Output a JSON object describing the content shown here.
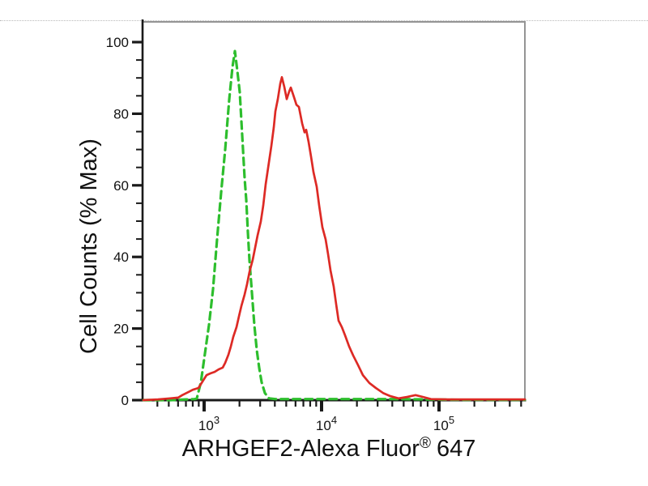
{
  "page": {
    "background": "#ffffff"
  },
  "labels": {
    "x_title_main": "ARHGEF2-Alexa Fluor",
    "x_title_sup": "®",
    "x_title_suffix": "647",
    "y_title": "Cell Counts (% Max)"
  },
  "chart_data": {
    "type": "line",
    "subtype": "flow-cytometry-histogram",
    "title": "",
    "xlabel": "ARHGEF2-Alexa Fluor® 647",
    "ylabel": "Cell Counts (% Max)",
    "x_scale": "log10",
    "x_range": [
      300,
      538000
    ],
    "y_range": [
      0,
      106
    ],
    "grid": false,
    "legend": "none",
    "axis_color": "#1a1a1a",
    "frame_color": "#949494",
    "x_major_ticks": [
      {
        "value": 1000,
        "base": "10",
        "exp": "3"
      },
      {
        "value": 10000,
        "base": "10",
        "exp": "4"
      },
      {
        "value": 100000,
        "base": "10",
        "exp": "5"
      }
    ],
    "x_minor_multiples": [
      2,
      3,
      4,
      5,
      6,
      7,
      8,
      9
    ],
    "y_major_ticks": [
      0,
      20,
      40,
      60,
      80,
      100
    ],
    "y_minor_step": 5,
    "series": [
      {
        "name": "green-dashed-control",
        "color": "#2dbe2d",
        "line_style": "dashed",
        "dash": [
          9,
          6
        ],
        "width": 3.2,
        "peak": {
          "x": 1830,
          "y": 97.5
        },
        "points": [
          [
            300,
            0
          ],
          [
            520,
            0
          ],
          [
            700,
            0.2
          ],
          [
            830,
            0.3
          ],
          [
            867,
            0.5
          ],
          [
            938,
            5
          ],
          [
            1016,
            13
          ],
          [
            1100,
            21
          ],
          [
            1191,
            31
          ],
          [
            1289,
            45
          ],
          [
            1396,
            58
          ],
          [
            1511,
            70
          ],
          [
            1636,
            84
          ],
          [
            1744,
            93
          ],
          [
            1829,
            97.5
          ],
          [
            1918,
            92
          ],
          [
            2012,
            86
          ],
          [
            2076,
            78
          ],
          [
            2143,
            70
          ],
          [
            2212,
            62
          ],
          [
            2283,
            56
          ],
          [
            2357,
            47
          ],
          [
            2433,
            39
          ],
          [
            2512,
            33
          ],
          [
            2593,
            27
          ],
          [
            2677,
            21
          ],
          [
            2808,
            14
          ],
          [
            2944,
            9
          ],
          [
            3088,
            5
          ],
          [
            3290,
            2
          ],
          [
            3563,
            0.5
          ],
          [
            4045,
            0.3
          ],
          [
            6000,
            0.3
          ],
          [
            10000,
            0.3
          ],
          [
            20000,
            0.3
          ],
          [
            40000,
            0.3
          ],
          [
            80000,
            0.2
          ],
          [
            150000,
            0.1
          ],
          [
            538000,
            0.1
          ]
        ]
      },
      {
        "name": "red-solid-stained",
        "color": "#dd2a25",
        "line_style": "solid",
        "dash": null,
        "width": 2.7,
        "peak": {
          "x": 4600,
          "y": 90.2
        },
        "points": [
          [
            300,
            0
          ],
          [
            404,
            0.2
          ],
          [
            513,
            0.5
          ],
          [
            602,
            0.7
          ],
          [
            651,
            1.4
          ],
          [
            740,
            2.3
          ],
          [
            801,
            2.9
          ],
          [
            895,
            3.4
          ],
          [
            1000,
            5.9
          ],
          [
            1049,
            7
          ],
          [
            1135,
            7.5
          ],
          [
            1230,
            7.9
          ],
          [
            1331,
            8.6
          ],
          [
            1441,
            9.1
          ],
          [
            1511,
            10.4
          ],
          [
            1611,
            12.7
          ],
          [
            1689,
            15
          ],
          [
            1772,
            17.7
          ],
          [
            1887,
            20.4
          ],
          [
            1980,
            23.4
          ],
          [
            2076,
            26.3
          ],
          [
            2212,
            29.5
          ],
          [
            2321,
            32.4
          ],
          [
            2433,
            35.8
          ],
          [
            2593,
            39.2
          ],
          [
            2719,
            42.6
          ],
          [
            2853,
            46
          ],
          [
            3040,
            49.9
          ],
          [
            3188,
            54.4
          ],
          [
            3343,
            60.3
          ],
          [
            3563,
            66.4
          ],
          [
            3736,
            71
          ],
          [
            3917,
            76.2
          ],
          [
            4045,
            80.7
          ],
          [
            4242,
            84.1
          ],
          [
            4449,
            88.4
          ],
          [
            4593,
            90.2
          ],
          [
            4817,
            87.5
          ],
          [
            5051,
            84.1
          ],
          [
            5298,
            86.2
          ],
          [
            5468,
            87.3
          ],
          [
            5827,
            84.6
          ],
          [
            6112,
            82.5
          ],
          [
            6410,
            81.9
          ],
          [
            6833,
            77.3
          ],
          [
            7166,
            74.8
          ],
          [
            7397,
            75.5
          ],
          [
            7758,
            72.1
          ],
          [
            8137,
            68
          ],
          [
            8533,
            63.7
          ],
          [
            9092,
            59.6
          ],
          [
            9534,
            54.4
          ],
          [
            10160,
            48.3
          ],
          [
            10826,
            44.9
          ],
          [
            11353,
            40.8
          ],
          [
            11906,
            36.3
          ],
          [
            12685,
            31.7
          ],
          [
            13302,
            26.8
          ],
          [
            13950,
            22.2
          ],
          [
            14869,
            20.4
          ],
          [
            15849,
            18.1
          ],
          [
            17159,
            15
          ],
          [
            18577,
            12.5
          ],
          [
            20432,
            9.8
          ],
          [
            22473,
            7
          ],
          [
            25527,
            4.8
          ],
          [
            28980,
            3.4
          ],
          [
            33430,
            2
          ],
          [
            38573,
            1.1
          ],
          [
            45206,
            0.5
          ],
          [
            53826,
            0.9
          ],
          [
            63096,
            1.4
          ],
          [
            72786,
            0.9
          ],
          [
            85310,
            0.3
          ],
          [
            120000,
            0.2
          ],
          [
            250000,
            0.2
          ],
          [
            538000,
            0.2
          ]
        ]
      }
    ]
  }
}
